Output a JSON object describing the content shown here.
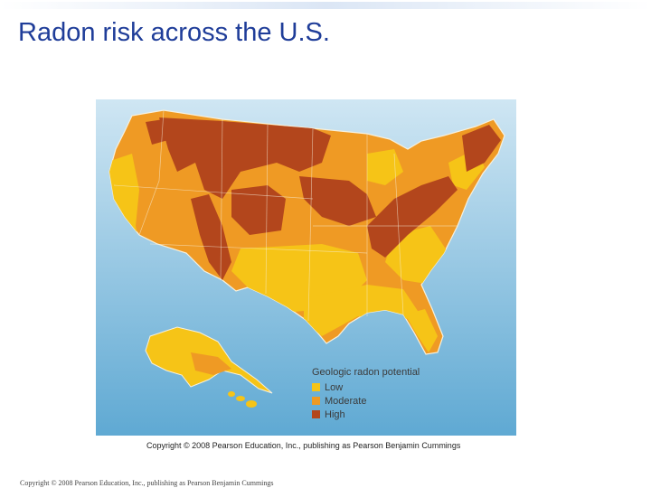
{
  "slide": {
    "title": "Radon risk across the U.S.",
    "footer": "Copyright © 2008 Pearson Education, Inc., publishing as Pearson Benjamin Cummings"
  },
  "figure": {
    "credit": "Copyright © 2008 Pearson Education, Inc., publishing as Pearson Benjamin Cummings",
    "colors": {
      "ocean_top": "#cfe6f3",
      "ocean_bottom": "#5fa9d3",
      "border": "#f6f0dd"
    },
    "legend": {
      "title": "Geologic radon potential",
      "items": [
        {
          "label": "Low",
          "color": "#f6c417"
        },
        {
          "label": "Moderate",
          "color": "#ef9a24"
        },
        {
          "label": "High",
          "color": "#b3461c"
        }
      ]
    }
  }
}
